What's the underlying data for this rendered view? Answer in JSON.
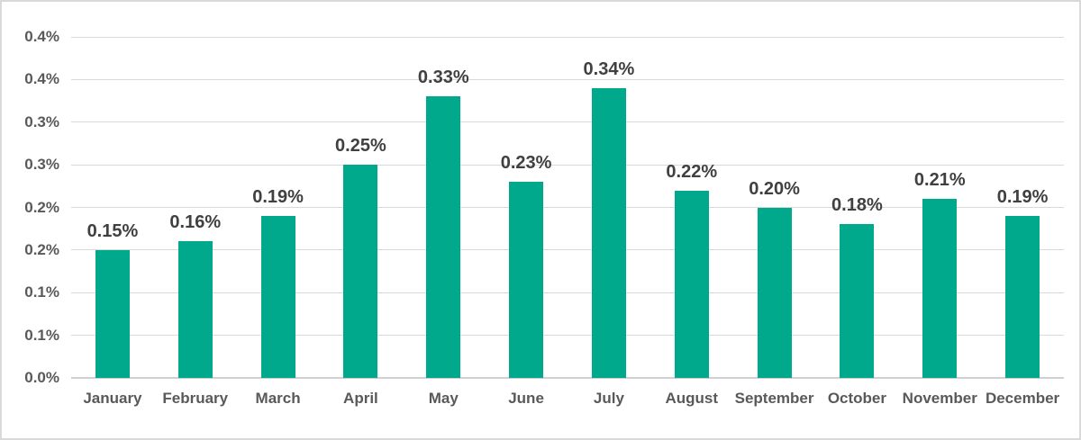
{
  "chart_data": {
    "type": "bar",
    "title": "",
    "xlabel": "",
    "ylabel": "",
    "categories": [
      "January",
      "February",
      "March",
      "April",
      "May",
      "June",
      "July",
      "August",
      "September",
      "October",
      "November",
      "December"
    ],
    "values": [
      0.15,
      0.16,
      0.19,
      0.25,
      0.33,
      0.23,
      0.34,
      0.22,
      0.2,
      0.18,
      0.21,
      0.19
    ],
    "data_labels": [
      "0.15%",
      "0.16%",
      "0.19%",
      "0.25%",
      "0.33%",
      "0.23%",
      "0.34%",
      "0.22%",
      "0.20%",
      "0.18%",
      "0.21%",
      "0.19%"
    ],
    "ylim": [
      0,
      0.4
    ],
    "y_tick_step": 0.05,
    "y_tick_labels_top_to_bottom": [
      "0.4%",
      "0.4%",
      "0.3%",
      "0.3%",
      "0.2%",
      "0.2%",
      "0.1%",
      "0.1%",
      "0.0%"
    ],
    "grid": true,
    "legend": "none"
  },
  "colors": {
    "bar": "#00a88c",
    "gridline": "#d9d9d9",
    "axis_line": "#d0d0d0",
    "tick_label": "#595959",
    "category_label": "#595959",
    "data_label": "#404040",
    "background": "#ffffff",
    "frame_border": "#d9d9d9"
  }
}
